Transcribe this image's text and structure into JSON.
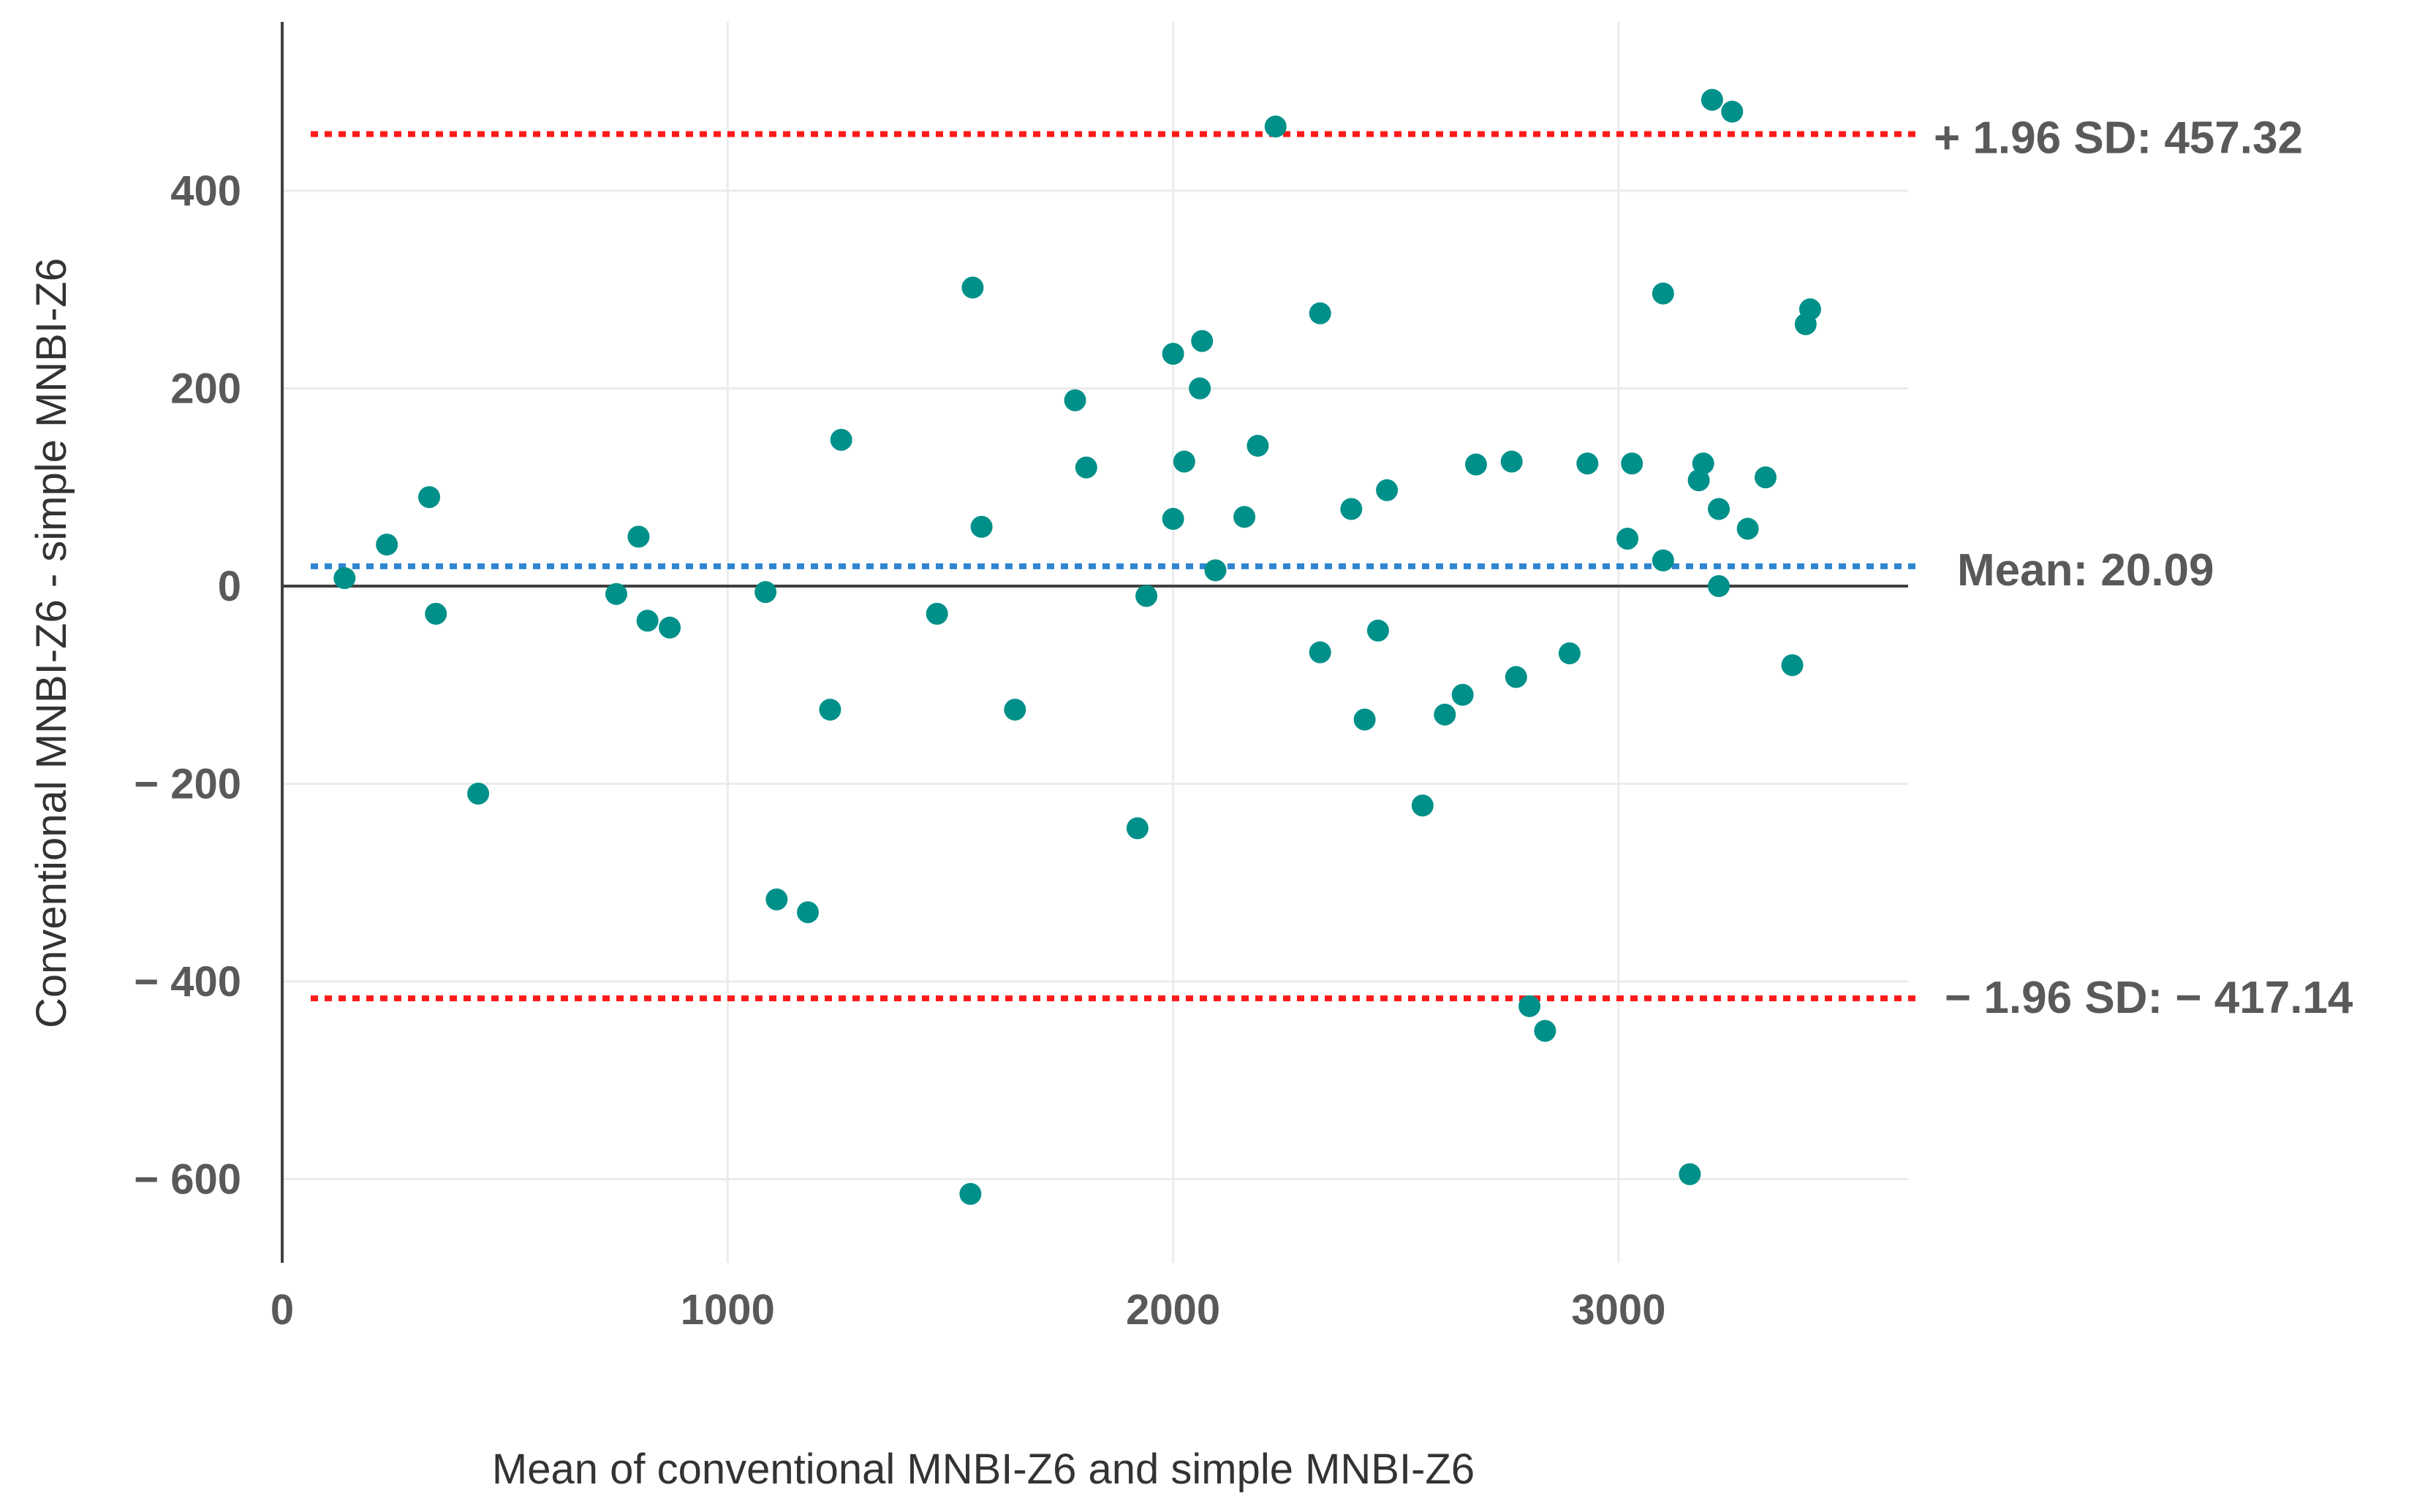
{
  "chart_data": {
    "type": "scatter",
    "title": "",
    "xlabel": "Mean of conventional  MNBI-Z6  and simple MNBI-Z6",
    "ylabel": "Conventional  MNBI-Z6   - simple MNBI-Z6",
    "xlim": [
      0,
      3650
    ],
    "ylim": [
      -680,
      570
    ],
    "x_ticks": [
      0,
      1000,
      2000,
      3000
    ],
    "x_tick_labels": [
      "0",
      "1000",
      "2000",
      "3000"
    ],
    "y_ticks": [
      400,
      200,
      0,
      -200,
      -400,
      -600
    ],
    "y_tick_labels": [
      "400",
      "200",
      "0",
      "− 200",
      "− 400",
      "− 600"
    ],
    "grid": true,
    "point_color": "#00908A",
    "reference_lines": [
      {
        "name": "upper-limit",
        "value": 457.32,
        "label": "+ 1.96 SD: 457.32",
        "color": "#FF1A1A"
      },
      {
        "name": "mean",
        "value": 20.09,
        "label": "Mean: 20.09",
        "color": "#2F85D0"
      },
      {
        "name": "lower-limit",
        "value": -417.14,
        "label": "− 1.96 SD: − 417.14",
        "color": "#FF1A1A"
      }
    ],
    "points": [
      {
        "x": 140,
        "y": 8
      },
      {
        "x": 235,
        "y": 42
      },
      {
        "x": 330,
        "y": 90
      },
      {
        "x": 345,
        "y": -28
      },
      {
        "x": 440,
        "y": -210
      },
      {
        "x": 750,
        "y": -8
      },
      {
        "x": 800,
        "y": 50
      },
      {
        "x": 820,
        "y": -35
      },
      {
        "x": 870,
        "y": -42
      },
      {
        "x": 1085,
        "y": -6
      },
      {
        "x": 1110,
        "y": -317
      },
      {
        "x": 1180,
        "y": -330
      },
      {
        "x": 1230,
        "y": -125
      },
      {
        "x": 1255,
        "y": 148
      },
      {
        "x": 1470,
        "y": -28
      },
      {
        "x": 1550,
        "y": 302
      },
      {
        "x": 1570,
        "y": 60
      },
      {
        "x": 1545,
        "y": -615
      },
      {
        "x": 1645,
        "y": -125
      },
      {
        "x": 1780,
        "y": 188
      },
      {
        "x": 1805,
        "y": 120
      },
      {
        "x": 1920,
        "y": -245
      },
      {
        "x": 1940,
        "y": -10
      },
      {
        "x": 2000,
        "y": 235
      },
      {
        "x": 2000,
        "y": 68
      },
      {
        "x": 2025,
        "y": 126
      },
      {
        "x": 2060,
        "y": 200
      },
      {
        "x": 2065,
        "y": 248
      },
      {
        "x": 2095,
        "y": 16
      },
      {
        "x": 2160,
        "y": 70
      },
      {
        "x": 2190,
        "y": 142
      },
      {
        "x": 2230,
        "y": 465
      },
      {
        "x": 2330,
        "y": 276
      },
      {
        "x": 2330,
        "y": -67
      },
      {
        "x": 2400,
        "y": 78
      },
      {
        "x": 2430,
        "y": -135
      },
      {
        "x": 2460,
        "y": -45
      },
      {
        "x": 2480,
        "y": 97
      },
      {
        "x": 2560,
        "y": -222
      },
      {
        "x": 2610,
        "y": -130
      },
      {
        "x": 2650,
        "y": -110
      },
      {
        "x": 2680,
        "y": 123
      },
      {
        "x": 2760,
        "y": 126
      },
      {
        "x": 2770,
        "y": -92
      },
      {
        "x": 2800,
        "y": -425
      },
      {
        "x": 2835,
        "y": -450
      },
      {
        "x": 2890,
        "y": -68
      },
      {
        "x": 2930,
        "y": 124
      },
      {
        "x": 3020,
        "y": 48
      },
      {
        "x": 3030,
        "y": 124
      },
      {
        "x": 3100,
        "y": 296
      },
      {
        "x": 3100,
        "y": 26
      },
      {
        "x": 3160,
        "y": -595
      },
      {
        "x": 3180,
        "y": 107
      },
      {
        "x": 3190,
        "y": 124
      },
      {
        "x": 3210,
        "y": 492
      },
      {
        "x": 3225,
        "y": 78
      },
      {
        "x": 3225,
        "y": 0
      },
      {
        "x": 3255,
        "y": 480
      },
      {
        "x": 3290,
        "y": 58
      },
      {
        "x": 3330,
        "y": 110
      },
      {
        "x": 3390,
        "y": -80
      },
      {
        "x": 3420,
        "y": 265
      },
      {
        "x": 3430,
        "y": 280
      }
    ]
  }
}
